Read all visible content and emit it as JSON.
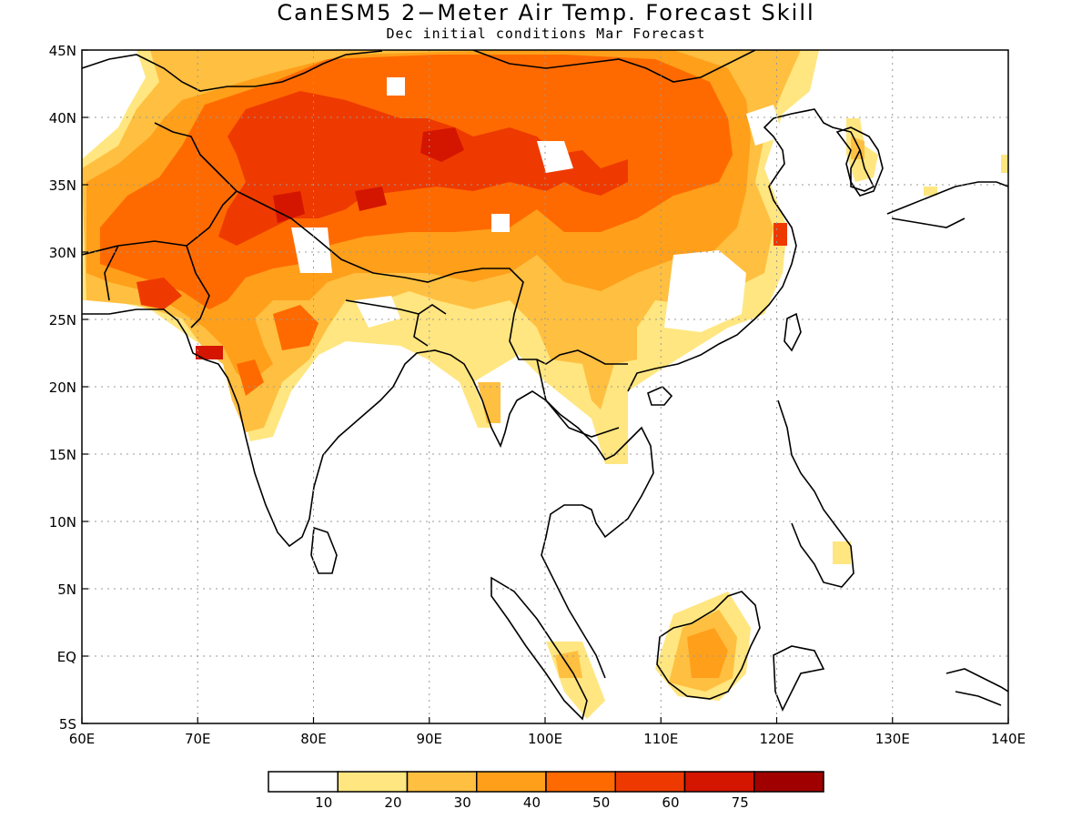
{
  "title": "CanESM5 2−Meter Air Temp. Forecast Skill",
  "subtitle": "Dec initial conditions  Mar Forecast",
  "map": {
    "lon_range": [
      60,
      140
    ],
    "lat_range": [
      -5,
      45
    ],
    "lon_ticks": [
      "60E",
      "70E",
      "80E",
      "90E",
      "100E",
      "110E",
      "120E",
      "130E",
      "140E"
    ],
    "lat_ticks": [
      "5S",
      "EQ",
      "5N",
      "10N",
      "15N",
      "20N",
      "25N",
      "30N",
      "35N",
      "40N",
      "45N"
    ],
    "grid": true
  },
  "colorbar": {
    "colors": [
      "#ffffff",
      "#ffe680",
      "#ffbf40",
      "#ff9f1a",
      "#ff6a00",
      "#ee3a00",
      "#d41500",
      "#a00000"
    ],
    "labels": [
      "10",
      "20",
      "30",
      "40",
      "50",
      "60",
      "75"
    ]
  }
}
